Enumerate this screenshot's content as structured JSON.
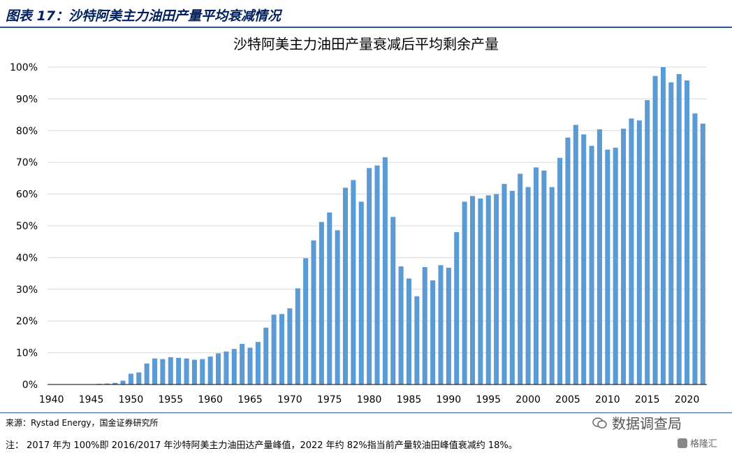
{
  "figure_title": "图表 17：沙特阿美主力油田产量平均衰减情况",
  "source": "来源：Rystad Energy，国金证券研究所",
  "note": "注：  2017 年为 100%即 2016/2017 年沙特阿美主力油田达产量峰值，2022 年约 82%指当前产量较油田峰值衰减约 18%。",
  "watermark": "数据调查局",
  "logo_text": "格隆汇",
  "colors": {
    "bar": "#5b9bd5",
    "header": "#002060",
    "rule": "#2e5597",
    "grid": "#d9d9d9"
  },
  "chart_data": {
    "type": "bar",
    "title": "沙特阿美主力油田产量衰减后平均剩余产量",
    "xlabel": "",
    "ylabel": "",
    "ylim": [
      0,
      1
    ],
    "yticks": [
      "0%",
      "10%",
      "20%",
      "30%",
      "40%",
      "50%",
      "60%",
      "70%",
      "80%",
      "90%",
      "100%"
    ],
    "xticks": [
      "1940",
      "1945",
      "1950",
      "1955",
      "1960",
      "1965",
      "1970",
      "1975",
      "1980",
      "1985",
      "1990",
      "1995",
      "2000",
      "2005",
      "2010",
      "2015",
      "2020"
    ],
    "xlim": [
      1940,
      2022
    ],
    "grid": true,
    "x": [
      1940,
      1941,
      1942,
      1943,
      1944,
      1945,
      1946,
      1947,
      1948,
      1949,
      1950,
      1951,
      1952,
      1953,
      1954,
      1955,
      1956,
      1957,
      1958,
      1959,
      1960,
      1961,
      1962,
      1963,
      1964,
      1965,
      1966,
      1967,
      1968,
      1969,
      1970,
      1971,
      1972,
      1973,
      1974,
      1975,
      1976,
      1977,
      1978,
      1979,
      1980,
      1981,
      1982,
      1983,
      1984,
      1985,
      1986,
      1987,
      1988,
      1989,
      1990,
      1991,
      1992,
      1993,
      1994,
      1995,
      1996,
      1997,
      1998,
      1999,
      2000,
      2001,
      2002,
      2003,
      2004,
      2005,
      2006,
      2007,
      2008,
      2009,
      2010,
      2011,
      2012,
      2013,
      2014,
      2015,
      2016,
      2017,
      2018,
      2019,
      2020,
      2021,
      2022
    ],
    "values": [
      0,
      0,
      0,
      0,
      0,
      0.001,
      0.002,
      0.003,
      0.005,
      0.012,
      0.034,
      0.038,
      0.066,
      0.082,
      0.08,
      0.086,
      0.084,
      0.082,
      0.078,
      0.08,
      0.088,
      0.098,
      0.104,
      0.112,
      0.128,
      0.116,
      0.134,
      0.179,
      0.22,
      0.222,
      0.24,
      0.303,
      0.398,
      0.454,
      0.512,
      0.542,
      0.486,
      0.62,
      0.644,
      0.576,
      0.682,
      0.69,
      0.716,
      0.528,
      0.372,
      0.334,
      0.278,
      0.37,
      0.328,
      0.376,
      0.368,
      0.48,
      0.576,
      0.594,
      0.586,
      0.596,
      0.6,
      0.632,
      0.61,
      0.664,
      0.622,
      0.684,
      0.674,
      0.622,
      0.714,
      0.778,
      0.818,
      0.788,
      0.752,
      0.804,
      0.74,
      0.746,
      0.806,
      0.838,
      0.832,
      0.896,
      0.972,
      1.0,
      0.952,
      0.978,
      0.958,
      0.854,
      0.822
    ]
  }
}
